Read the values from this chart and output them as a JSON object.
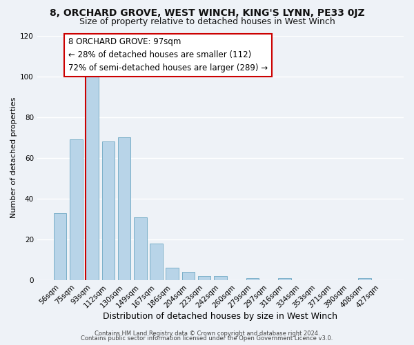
{
  "title": "8, ORCHARD GROVE, WEST WINCH, KING'S LYNN, PE33 0JZ",
  "subtitle": "Size of property relative to detached houses in West Winch",
  "xlabel": "Distribution of detached houses by size in West Winch",
  "ylabel": "Number of detached properties",
  "bar_color": "#b8d4e8",
  "bar_edge_color": "#7aafc8",
  "categories": [
    "56sqm",
    "75sqm",
    "93sqm",
    "112sqm",
    "130sqm",
    "149sqm",
    "167sqm",
    "186sqm",
    "204sqm",
    "223sqm",
    "242sqm",
    "260sqm",
    "279sqm",
    "297sqm",
    "316sqm",
    "334sqm",
    "353sqm",
    "371sqm",
    "390sqm",
    "408sqm",
    "427sqm"
  ],
  "values": [
    33,
    69,
    100,
    68,
    70,
    31,
    18,
    6,
    4,
    2,
    2,
    0,
    1,
    0,
    1,
    0,
    0,
    0,
    0,
    1,
    0
  ],
  "ylim": [
    0,
    120
  ],
  "yticks": [
    0,
    20,
    40,
    60,
    80,
    100,
    120
  ],
  "property_line_index": 2,
  "property_line_color": "#cc0000",
  "annotation_text": "8 ORCHARD GROVE: 97sqm\n← 28% of detached houses are smaller (112)\n72% of semi-detached houses are larger (289) →",
  "annotation_box_facecolor": "#ffffff",
  "annotation_box_edgecolor": "#cc0000",
  "footer_line1": "Contains HM Land Registry data © Crown copyright and database right 2024.",
  "footer_line2": "Contains public sector information licensed under the Open Government Licence v3.0.",
  "background_color": "#eef2f7",
  "grid_color": "#ffffff",
  "title_fontsize": 10,
  "subtitle_fontsize": 9,
  "xlabel_fontsize": 9,
  "ylabel_fontsize": 8,
  "tick_fontsize": 7.5,
  "annotation_fontsize": 8.5,
  "footer_fontsize": 6
}
